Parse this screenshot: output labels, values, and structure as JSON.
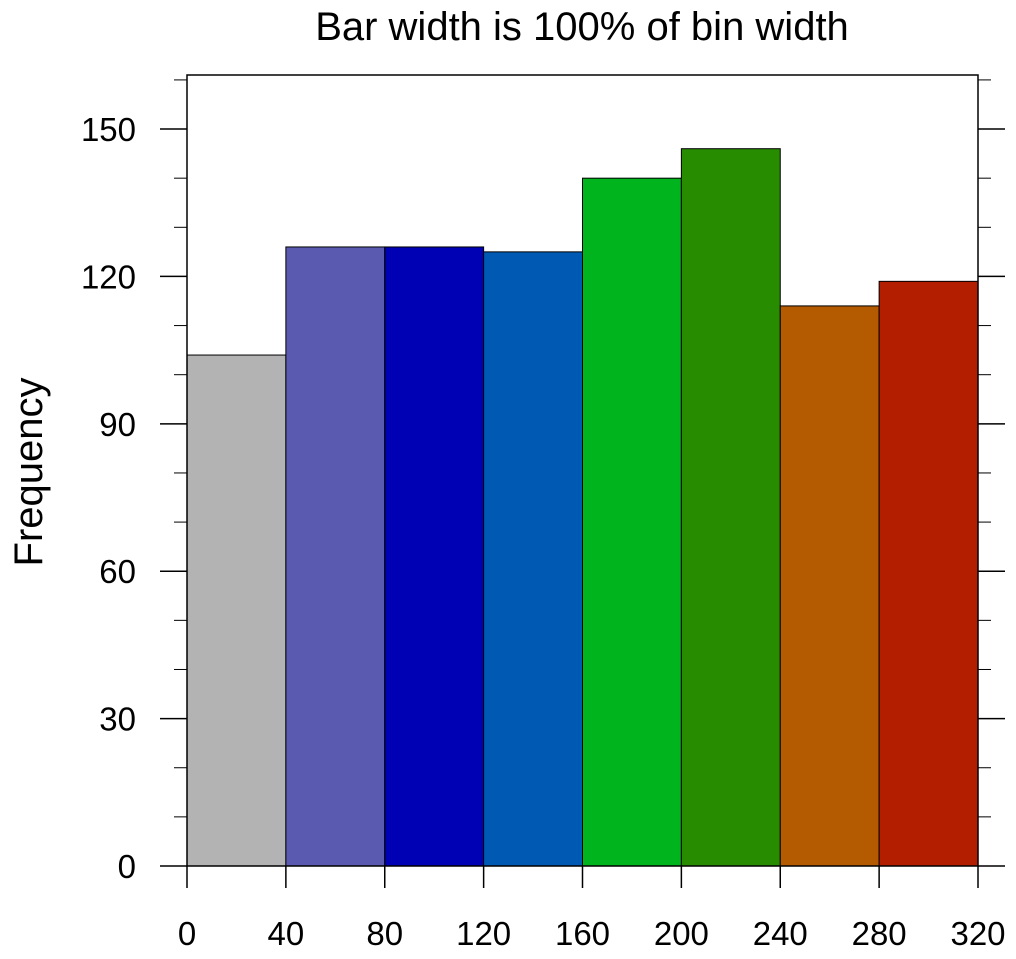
{
  "chart_data": {
    "type": "bar",
    "title": "Bar width is 100% of bin width",
    "xlabel": "",
    "ylabel": "Frequency",
    "bins": [
      {
        "from": 0,
        "to": 40,
        "value": 104,
        "color": "#b3b3b3"
      },
      {
        "from": 40,
        "to": 80,
        "value": 126,
        "color": "#5a5ab0"
      },
      {
        "from": 80,
        "to": 120,
        "value": 126,
        "color": "#0000b4"
      },
      {
        "from": 120,
        "to": 160,
        "value": 125,
        "color": "#005ab4"
      },
      {
        "from": 160,
        "to": 200,
        "value": 140,
        "color": "#00b41e"
      },
      {
        "from": 200,
        "to": 240,
        "value": 146,
        "color": "#288c00"
      },
      {
        "from": 240,
        "to": 280,
        "value": 114,
        "color": "#b45a00"
      },
      {
        "from": 280,
        "to": 320,
        "value": 119,
        "color": "#b41e00"
      }
    ],
    "xlim": [
      0,
      320
    ],
    "ylim": [
      0,
      161
    ],
    "xticks": [
      "0",
      "40",
      "80",
      "120",
      "160",
      "200",
      "240",
      "280",
      "320"
    ],
    "yticks": [
      "0",
      "30",
      "60",
      "90",
      "120",
      "150"
    ],
    "y_minor_step": 10,
    "grid": false,
    "legend": "none"
  }
}
